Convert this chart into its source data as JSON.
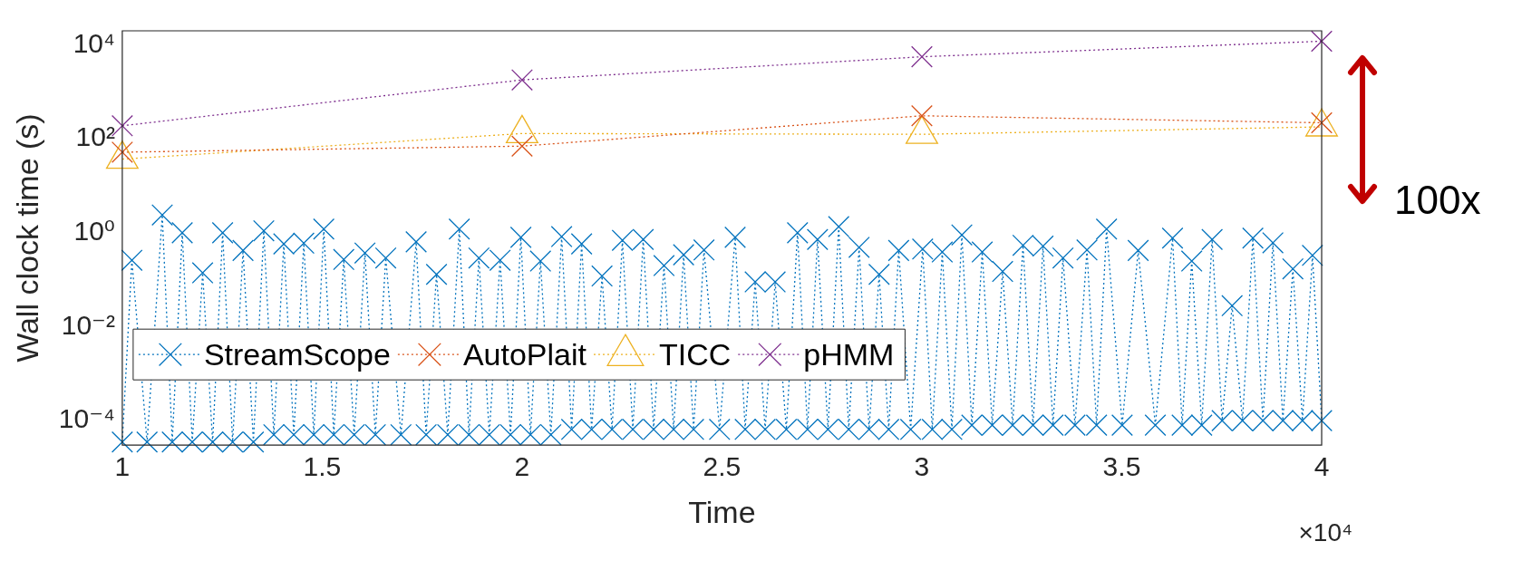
{
  "chart_data": {
    "type": "line",
    "xlabel": "Time",
    "ylabel": "Wall clock time (s)",
    "log": "y",
    "grid": false,
    "legend": "bottom left",
    "line_style": "dotted",
    "xlim": [
      1,
      4
    ],
    "xticks": [
      1,
      1.5,
      2,
      2.5,
      3,
      3.5,
      4
    ],
    "ylim": [
      3e-05,
      20000
    ],
    "yticks": [
      {
        "value": 0.0001,
        "label": "10⁻⁴"
      },
      {
        "value": 0.01,
        "label": "10⁻²"
      },
      {
        "value": 1,
        "label": "10⁰"
      },
      {
        "value": 100,
        "label": "10²"
      },
      {
        "value": 10000,
        "label": "10⁴"
      }
    ],
    "annotations": [
      "×10⁴",
      "100x"
    ],
    "series": [
      {
        "name": "StreamScope",
        "color": "#0072bd",
        "marker": "cross",
        "x": [
          1,
          1.024,
          1.062,
          1.1,
          1.125,
          1.15,
          1.175,
          1.201,
          1.226,
          1.251,
          1.276,
          1.302,
          1.328,
          1.354,
          1.379,
          1.404,
          1.429,
          1.454,
          1.479,
          1.504,
          1.529,
          1.554,
          1.58,
          1.607,
          1.633,
          1.659,
          1.697,
          1.735,
          1.76,
          1.786,
          1.814,
          1.843,
          1.867,
          1.892,
          1.918,
          1.945,
          1.971,
          1.997,
          2.021,
          2.046,
          2.072,
          2.099,
          2.124,
          2.149,
          2.174,
          2.2,
          2.225,
          2.251,
          2.277,
          2.303,
          2.329,
          2.355,
          2.379,
          2.404,
          2.429,
          2.455,
          2.494,
          2.533,
          2.558,
          2.583,
          2.608,
          2.633,
          2.661,
          2.689,
          2.714,
          2.739,
          2.765,
          2.792,
          2.817,
          2.843,
          2.868,
          2.893,
          2.917,
          2.942,
          2.972,
          3.002,
          3.026,
          3.051,
          3.075,
          3.1,
          3.125,
          3.151,
          3.176,
          3.202,
          3.227,
          3.253,
          3.278,
          3.303,
          3.328,
          3.353,
          3.383,
          3.413,
          3.437,
          3.462,
          3.501,
          3.541,
          3.584,
          3.627,
          3.651,
          3.675,
          3.7,
          3.726,
          3.751,
          3.776,
          3.802,
          3.828,
          3.853,
          3.878,
          3.903,
          3.928,
          3.952,
          3.977,
          4
        ],
        "values": [
          3.5e-05,
          0.26,
          3.5e-05,
          2.4,
          3.5e-05,
          1.0,
          3.5e-05,
          0.14,
          3.5e-05,
          1.0,
          3.5e-05,
          0.42,
          3.5e-05,
          1.1,
          5e-05,
          0.58,
          5e-05,
          0.6,
          5e-05,
          1.2,
          5e-05,
          0.27,
          5e-05,
          0.37,
          5e-05,
          0.29,
          5e-05,
          0.64,
          5e-05,
          0.13,
          5e-05,
          1.2,
          5e-05,
          0.29,
          5e-05,
          0.26,
          5e-05,
          0.8,
          5e-05,
          0.25,
          5e-05,
          0.83,
          6.5e-05,
          0.58,
          6.5e-05,
          0.12,
          6.5e-05,
          0.69,
          6.5e-05,
          0.72,
          6.5e-05,
          0.2,
          6.5e-05,
          0.34,
          6.5e-05,
          0.43,
          6.5e-05,
          0.8,
          6.5e-05,
          0.09,
          6.5e-05,
          0.09,
          6.5e-05,
          1.0,
          6.5e-05,
          0.72,
          6.5e-05,
          1.35,
          6.5e-05,
          0.49,
          6.5e-05,
          0.13,
          6.5e-05,
          0.42,
          6.5e-05,
          0.45,
          6.5e-05,
          0.39,
          6.5e-05,
          0.9,
          8e-05,
          0.39,
          8e-05,
          0.15,
          8e-05,
          0.54,
          8e-05,
          0.52,
          8e-05,
          0.29,
          8e-05,
          0.43,
          8e-05,
          1.2,
          8e-05,
          0.42,
          8e-05,
          0.77,
          8e-05,
          0.25,
          8e-05,
          0.72,
          0.0001,
          0.028,
          0.0001,
          0.77,
          0.0001,
          0.61,
          0.0001,
          0.17,
          0.0001,
          0.33,
          0.0001
        ]
      },
      {
        "name": "AutoPlait",
        "color": "#d95319",
        "marker": "cross",
        "x": [
          1,
          2,
          3,
          4
        ],
        "values": [
          52,
          70,
          310,
          220
        ]
      },
      {
        "name": "TICC",
        "color": "#edb120",
        "marker": "triangle",
        "x": [
          1,
          2,
          3,
          4
        ],
        "values": [
          37,
          130,
          125,
          180
        ]
      },
      {
        "name": "pHMM",
        "color": "#7e2f8e",
        "marker": "cross",
        "x": [
          1,
          2,
          3,
          4
        ],
        "values": [
          190,
          1800,
          5600,
          12000
        ]
      }
    ]
  }
}
